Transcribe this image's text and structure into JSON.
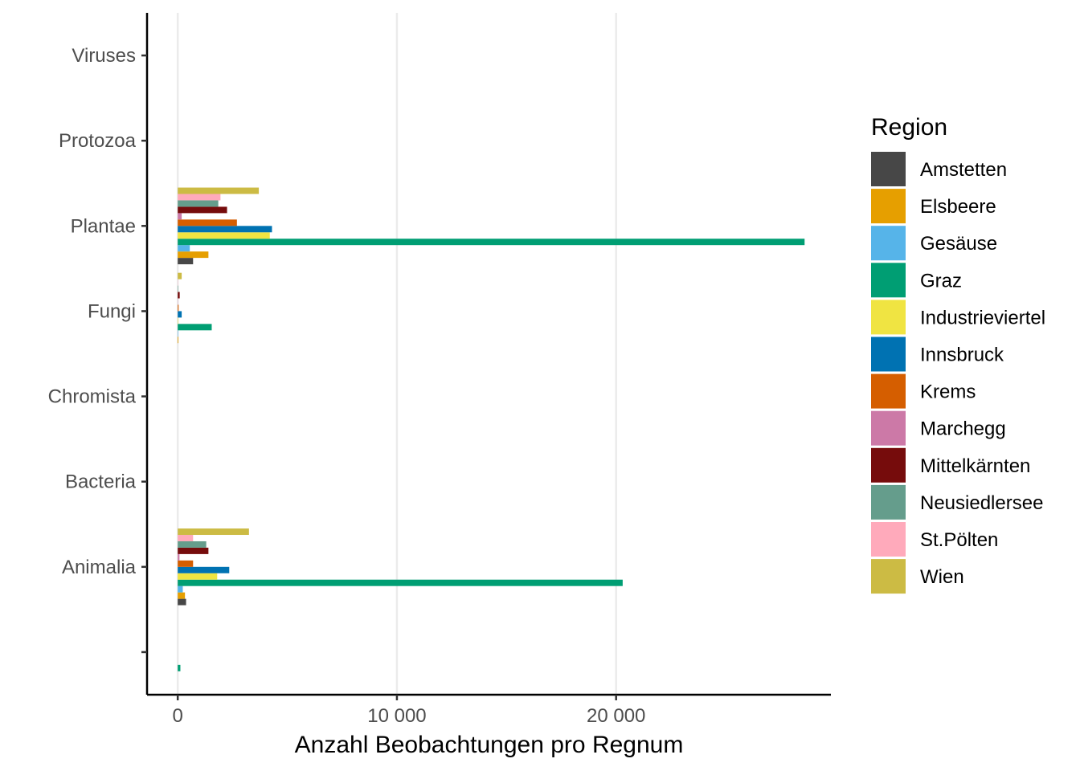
{
  "chart_data": {
    "type": "bar",
    "orientation": "horizontal",
    "xlabel": "Anzahl Beobachtungen pro Regnum",
    "ylabel": "",
    "xlim": [
      -1400,
      29800
    ],
    "x_ticks": [
      0,
      10000,
      20000
    ],
    "x_tick_labels": [
      "0",
      "10 000",
      "20 000"
    ],
    "vertical_grid": true,
    "categories": [
      "",
      "Animalia",
      "Bacteria",
      "Chromista",
      "Fungi",
      "Plantae",
      "Protozoa",
      "Viruses"
    ],
    "legend_title": "Region",
    "legend_position": "right",
    "series": [
      {
        "name": "Amstetten",
        "color": "#474747",
        "values": [
          0,
          380,
          0,
          0,
          0,
          700,
          0,
          0
        ]
      },
      {
        "name": "Elsbeere",
        "color": "#E69F00",
        "values": [
          0,
          330,
          0,
          0,
          30,
          1400,
          0,
          0
        ]
      },
      {
        "name": "Gesäuse",
        "color": "#56B4E9",
        "values": [
          0,
          230,
          0,
          0,
          20,
          550,
          0,
          0
        ]
      },
      {
        "name": "Graz",
        "color": "#009E73",
        "values": [
          120,
          20300,
          0,
          0,
          1550,
          28600,
          0,
          0
        ]
      },
      {
        "name": "Industrieviertel",
        "color": "#F0E442",
        "values": [
          0,
          1800,
          0,
          0,
          20,
          4200,
          0,
          0
        ]
      },
      {
        "name": "Innsbruck",
        "color": "#0072B2",
        "values": [
          0,
          2350,
          0,
          0,
          180,
          4300,
          0,
          0
        ]
      },
      {
        "name": "Krems",
        "color": "#D55E00",
        "values": [
          0,
          700,
          0,
          0,
          40,
          2700,
          0,
          0
        ]
      },
      {
        "name": "Marchegg",
        "color": "#CC79A7",
        "values": [
          0,
          80,
          0,
          0,
          10,
          180,
          0,
          0
        ]
      },
      {
        "name": "Mittelkärnten",
        "color": "#760C0C",
        "values": [
          0,
          1400,
          0,
          0,
          90,
          2250,
          0,
          0
        ]
      },
      {
        "name": "Neusiedlersee",
        "color": "#659D8C",
        "values": [
          0,
          1300,
          0,
          0,
          20,
          1850,
          0,
          0
        ]
      },
      {
        "name": "St.Pölten",
        "color": "#FFAABB",
        "values": [
          0,
          700,
          0,
          0,
          10,
          1950,
          0,
          0
        ]
      },
      {
        "name": "Wien",
        "color": "#CCBB44",
        "values": [
          0,
          3250,
          0,
          0,
          180,
          3700,
          0,
          0
        ]
      }
    ]
  }
}
